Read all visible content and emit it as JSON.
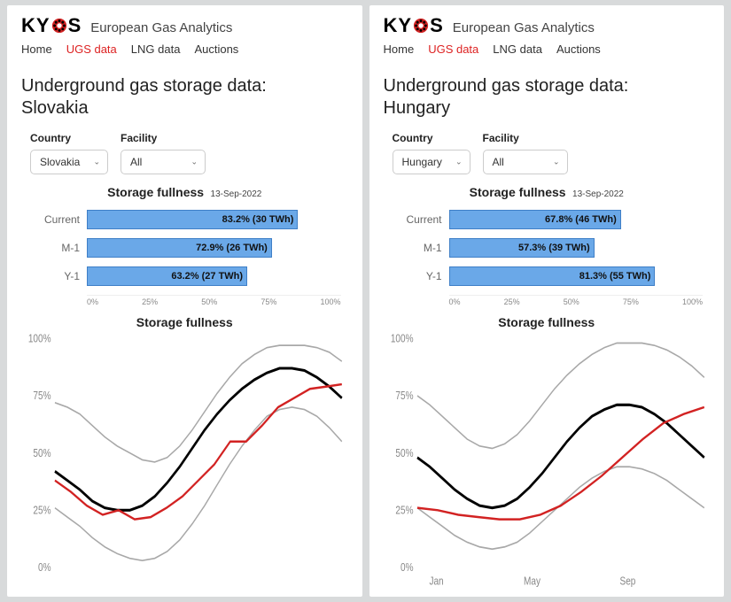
{
  "brand": {
    "name_left": "KY",
    "name_right": "S",
    "tagline": "European Gas Analytics"
  },
  "nav": {
    "items": [
      "Home",
      "UGS data",
      "LNG data",
      "Auctions"
    ],
    "active_index": 1,
    "active_color": "#d22222"
  },
  "panels": [
    {
      "title_line1": "Underground gas storage data:",
      "title_line2": "Slovakia",
      "filters": {
        "country_label": "Country",
        "country_value": "Slovakia",
        "facility_label": "Facility",
        "facility_value": "All"
      },
      "bar": {
        "title": "Storage fullness",
        "date": "13-Sep-2022",
        "categories": [
          "Current",
          "M-1",
          "Y-1"
        ],
        "values": [
          83.2,
          72.9,
          63.2
        ],
        "labels": [
          "83.2% (30 TWh)",
          "72.9% (26 TWh)",
          "63.2% (27 TWh)"
        ],
        "color": "#6aa8e8",
        "border": "#3f7fc7",
        "xticks": [
          "0%",
          "25%",
          "50%",
          "75%",
          "100%"
        ]
      },
      "line": {
        "title": "Storage fullness",
        "ylim": [
          0,
          100
        ],
        "yticks": [
          0,
          25,
          50,
          75,
          100
        ],
        "xticks": [],
        "env_upper": [
          72,
          70,
          67,
          62,
          57,
          53,
          50,
          47,
          46,
          48,
          53,
          60,
          68,
          76,
          83,
          89,
          93,
          96,
          97,
          97,
          97,
          96,
          94,
          90
        ],
        "env_lower": [
          26,
          22,
          18,
          13,
          9,
          6,
          4,
          3,
          4,
          7,
          12,
          19,
          27,
          36,
          45,
          53,
          60,
          66,
          69,
          70,
          69,
          66,
          61,
          55
        ],
        "env_color": "#a8a8a8",
        "env_width": 1.2,
        "black": [
          42,
          38,
          34,
          29,
          26,
          25,
          25,
          27,
          31,
          37,
          44,
          52,
          60,
          67,
          73,
          78,
          82,
          85,
          87,
          87,
          86,
          83,
          79,
          74
        ],
        "black_color": "#000000",
        "black_width": 2.2,
        "red": [
          38,
          33,
          27,
          23,
          25,
          21,
          22,
          26,
          31,
          38,
          45,
          55,
          55,
          62,
          70,
          74,
          78,
          79,
          80
        ],
        "red_color": "#d22222",
        "red_width": 1.8
      }
    },
    {
      "title_line1": "Underground gas storage data:",
      "title_line2": "Hungary",
      "filters": {
        "country_label": "Country",
        "country_value": "Hungary",
        "facility_label": "Facility",
        "facility_value": "All"
      },
      "bar": {
        "title": "Storage fullness",
        "date": "13-Sep-2022",
        "categories": [
          "Current",
          "M-1",
          "Y-1"
        ],
        "values": [
          67.8,
          57.3,
          81.3
        ],
        "labels": [
          "67.8% (46 TWh)",
          "57.3% (39 TWh)",
          "81.3% (55 TWh)"
        ],
        "color": "#6aa8e8",
        "border": "#3f7fc7",
        "xticks": [
          "0%",
          "25%",
          "50%",
          "75%",
          "100%"
        ]
      },
      "line": {
        "title": "Storage fullness",
        "ylim": [
          0,
          100
        ],
        "yticks": [
          0,
          25,
          50,
          75,
          100
        ],
        "xticks": [
          "Jan",
          "May",
          "Sep"
        ],
        "env_upper": [
          75,
          71,
          66,
          61,
          56,
          53,
          52,
          54,
          58,
          64,
          71,
          78,
          84,
          89,
          93,
          96,
          98,
          98,
          98,
          97,
          95,
          92,
          88,
          83
        ],
        "env_lower": [
          26,
          22,
          18,
          14,
          11,
          9,
          8,
          9,
          11,
          15,
          20,
          25,
          30,
          35,
          39,
          42,
          44,
          44,
          43,
          41,
          38,
          34,
          30,
          26
        ],
        "env_color": "#a8a8a8",
        "env_width": 1.2,
        "black": [
          48,
          44,
          39,
          34,
          30,
          27,
          26,
          27,
          30,
          35,
          41,
          48,
          55,
          61,
          66,
          69,
          71,
          71,
          70,
          67,
          63,
          58,
          53,
          48
        ],
        "black_color": "#000000",
        "black_width": 2.2,
        "red": [
          26,
          25,
          23,
          22,
          21,
          21,
          23,
          27,
          33,
          40,
          48,
          56,
          63,
          67,
          70
        ],
        "red_color": "#d22222",
        "red_width": 1.8
      }
    }
  ]
}
